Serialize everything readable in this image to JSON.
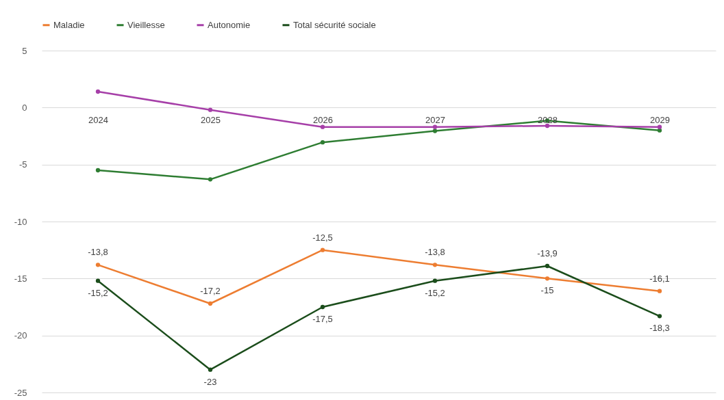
{
  "chart_data": {
    "type": "line",
    "categories": [
      "2024",
      "2025",
      "2026",
      "2027",
      "2028",
      "2029"
    ],
    "ylim": [
      -25,
      5
    ],
    "yticks": [
      {
        "value": -25,
        "label": "-25"
      },
      {
        "value": -20,
        "label": "-20"
      },
      {
        "value": -15,
        "label": "-15"
      },
      {
        "value": -10,
        "label": "-10"
      },
      {
        "value": -5,
        "label": "-5"
      },
      {
        "value": 0,
        "label": "0"
      },
      {
        "value": 5,
        "label": "5"
      }
    ],
    "grid": "y",
    "legend": "top",
    "marker": "circle",
    "line_style": "solid",
    "series": [
      {
        "name": "Maladie",
        "color": "#ed7d31",
        "values": [
          -13.8,
          -17.2,
          -12.5,
          -13.8,
          -15,
          -16.1
        ],
        "value_labels": [
          "-13,8",
          "-17,2",
          "-12,5",
          "-13,8",
          "-15",
          "-16,1"
        ]
      },
      {
        "name": "Vieillesse",
        "color": "#2e7d32",
        "values": [
          -5.5,
          -6.3,
          -3.05,
          -2.05,
          -1.15,
          -2.0
        ]
      },
      {
        "name": "Autonomie",
        "color": "#a63fa8",
        "values": [
          1.4,
          -0.2,
          -1.7,
          -1.7,
          -1.6,
          -1.7
        ]
      },
      {
        "name": "Total sécurité sociale",
        "color": "#1b4d1b",
        "values": [
          -15.2,
          -23,
          -17.5,
          -15.2,
          -13.9,
          -18.3
        ],
        "value_labels": [
          "-15,2",
          "-23",
          "-17,5",
          "-15,2",
          "-13,9",
          "-18,3"
        ]
      }
    ]
  }
}
